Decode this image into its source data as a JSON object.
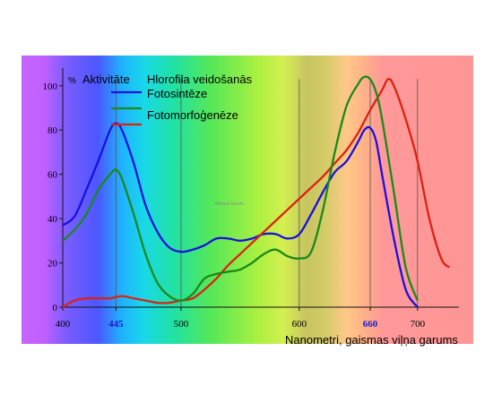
{
  "chart_data": {
    "type": "line",
    "title": "",
    "xlabel": "Nanometri, gaismas viļņa garums",
    "ylabel": "Aktivitāte",
    "y_unit": "%",
    "xlim": [
      400,
      735
    ],
    "ylim": [
      0,
      108
    ],
    "x_ticks": [
      400,
      500,
      600,
      700
    ],
    "x_highlight_ticks": [
      {
        "value": 445,
        "label": "445",
        "color": "#1a1acc"
      },
      {
        "value": 660,
        "label": "660",
        "color": "#1a1acc"
      }
    ],
    "y_ticks": [
      0,
      20,
      40,
      60,
      80,
      100
    ],
    "legend_title": "Hlorofila veidošanās",
    "legend_position": "top-left",
    "watermark": "Bellass Durvis",
    "series": [
      {
        "name": "Fotosintēze",
        "color": "#1a10e0",
        "x": [
          400,
          410,
          420,
          430,
          440,
          445,
          450,
          460,
          470,
          480,
          490,
          500,
          510,
          520,
          530,
          540,
          550,
          560,
          570,
          580,
          590,
          600,
          610,
          620,
          630,
          640,
          650,
          655,
          660,
          665,
          670,
          680,
          690,
          700
        ],
        "y": [
          37,
          41,
          53,
          66,
          80,
          83,
          80,
          65,
          46,
          34,
          27,
          25,
          26,
          28,
          31,
          31,
          30,
          31,
          33,
          33,
          31,
          33,
          42,
          52,
          61,
          66,
          75,
          80,
          81,
          75,
          60,
          31,
          8,
          0
        ]
      },
      {
        "name": "Fotomorfoģenēze",
        "color": "#dd2211",
        "x": [
          400,
          410,
          420,
          430,
          440,
          450,
          460,
          470,
          480,
          490,
          500,
          510,
          520,
          530,
          540,
          550,
          560,
          570,
          580,
          590,
          600,
          610,
          620,
          630,
          640,
          650,
          660,
          670,
          675,
          680,
          690,
          700,
          710,
          720,
          727
        ],
        "y": [
          0,
          3,
          4,
          4,
          4,
          5,
          4,
          3,
          2,
          2,
          3,
          4,
          8,
          13,
          19,
          24,
          29,
          34,
          39,
          44,
          49,
          54,
          59,
          65,
          71,
          79,
          89,
          98,
          103,
          100,
          85,
          66,
          40,
          22,
          18
        ]
      },
      {
        "name": "Hlorofila veidošanās",
        "color": "#1a8a1a",
        "x": [
          400,
          410,
          420,
          430,
          440,
          445,
          450,
          460,
          470,
          480,
          490,
          500,
          510,
          520,
          530,
          540,
          550,
          560,
          570,
          580,
          590,
          600,
          610,
          620,
          630,
          640,
          650,
          655,
          660,
          665,
          670,
          680,
          690,
          700
        ],
        "y": [
          30,
          35,
          42,
          53,
          60,
          62,
          58,
          42,
          24,
          11,
          5,
          3,
          6,
          13,
          15,
          16,
          17,
          20,
          24,
          26,
          23,
          22,
          25,
          44,
          70,
          91,
          101,
          104,
          103,
          97,
          85,
          52,
          18,
          3
        ]
      }
    ]
  }
}
